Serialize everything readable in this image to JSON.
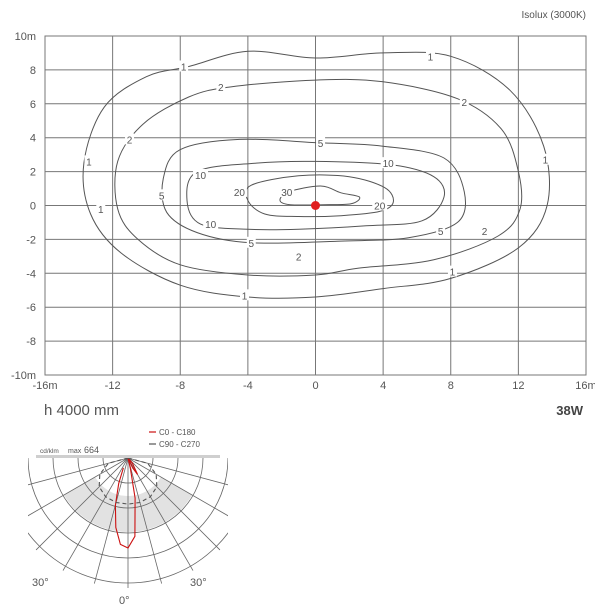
{
  "chart_data": [
    {
      "type": "contour",
      "title": "Isolux (3000K)",
      "x_range": [
        -16,
        16
      ],
      "y_range": [
        -10,
        10
      ],
      "x_ticks": [
        "-16m",
        "-12",
        "-8",
        "-4",
        "0",
        "4",
        "8",
        "12",
        "16m"
      ],
      "y_ticks": [
        "10m",
        "8",
        "6",
        "4",
        "2",
        "0",
        "-2",
        "-4",
        "-6",
        "-8",
        "-10m"
      ],
      "grid": true,
      "source_point": [
        0,
        0
      ],
      "contours": [
        {
          "level": "1",
          "points": [
            [
              -7.5,
              8.2
            ],
            [
              -4,
              9.1
            ],
            [
              0,
              8.7
            ],
            [
              4,
              9.0
            ],
            [
              8,
              8.8
            ],
            [
              11.5,
              6.8
            ],
            [
              13.5,
              3.5
            ],
            [
              13.7,
              0
            ],
            [
              12,
              -2.5
            ],
            [
              8,
              -4.3
            ],
            [
              4,
              -4.9
            ],
            [
              0,
              -5.4
            ],
            [
              -4,
              -5.4
            ],
            [
              -8,
              -4.7
            ],
            [
              -11.5,
              -2.8
            ],
            [
              -13.3,
              -0.5
            ],
            [
              -13.7,
              2.5
            ],
            [
              -12.5,
              5.8
            ],
            [
              -10,
              7.6
            ]
          ],
          "labels": [
            [
              -7.8,
              8.2
            ],
            [
              6.8,
              8.8
            ],
            [
              13.6,
              2.7
            ],
            [
              8.1,
              -3.9
            ],
            [
              -4.2,
              -5.3
            ],
            [
              -12.7,
              -0.2
            ],
            [
              -13.4,
              2.6
            ]
          ]
        },
        {
          "level": "2",
          "points": [
            [
              -5,
              7.0
            ],
            [
              0,
              7.4
            ],
            [
              4,
              7.3
            ],
            [
              8.4,
              6.3
            ],
            [
              11,
              4.5
            ],
            [
              12,
              2.0
            ],
            [
              12.1,
              -0.2
            ],
            [
              10.8,
              -1.8
            ],
            [
              7,
              -3.2
            ],
            [
              2.5,
              -3.7
            ],
            [
              0,
              -4.1
            ],
            [
              -4,
              -4.1
            ],
            [
              -8,
              -3.5
            ],
            [
              -10.5,
              -2.0
            ],
            [
              -11.7,
              -0.2
            ],
            [
              -11.7,
              2.6
            ],
            [
              -10.2,
              4.8
            ],
            [
              -7.5,
              6.4
            ]
          ],
          "labels": [
            [
              -5.6,
              7.0
            ],
            [
              8.8,
              6.1
            ],
            [
              10.0,
              -1.5
            ],
            [
              -1.0,
              -3.0
            ],
            [
              -11.0,
              3.9
            ]
          ]
        },
        {
          "level": "5",
          "points": [
            [
              -8,
              3.3
            ],
            [
              -4.5,
              3.9
            ],
            [
              0.2,
              3.7
            ],
            [
              4,
              3.5
            ],
            [
              7.6,
              2.8
            ],
            [
              8.8,
              0.8
            ],
            [
              8.4,
              -1.0
            ],
            [
              5.5,
              -1.9
            ],
            [
              1.5,
              -2.1
            ],
            [
              -3.8,
              -2.2
            ],
            [
              -7,
              -1.6
            ],
            [
              -8.8,
              -0.4
            ],
            [
              -9.0,
              1.6
            ]
          ],
          "labels": [
            [
              0.3,
              3.7
            ],
            [
              7.4,
              -1.5
            ],
            [
              -3.8,
              -2.2
            ],
            [
              -9.1,
              0.6
            ]
          ]
        },
        {
          "level": "10",
          "points": [
            [
              -7,
              2.0
            ],
            [
              -3.5,
              2.5
            ],
            [
              0,
              2.6
            ],
            [
              4.5,
              2.4
            ],
            [
              7,
              1.7
            ],
            [
              7.6,
              0.5
            ],
            [
              6.3,
              -0.9
            ],
            [
              3,
              -1.2
            ],
            [
              -1,
              -1.4
            ],
            [
              -4,
              -1.4
            ],
            [
              -6.8,
              -1.1
            ],
            [
              -7.6,
              0.3
            ]
          ],
          "labels": [
            [
              4.3,
              2.5
            ],
            [
              -6.8,
              1.8
            ],
            [
              -6.2,
              -1.1
            ]
          ]
        },
        {
          "level": "20",
          "points": [
            [
              -3.8,
              1.2
            ],
            [
              -1,
              1.75
            ],
            [
              2,
              1.7
            ],
            [
              4.1,
              1.05
            ],
            [
              4.6,
              0.2
            ],
            [
              3.8,
              -0.35
            ],
            [
              1.5,
              -0.6
            ],
            [
              -1,
              -0.65
            ],
            [
              -3.0,
              -0.5
            ],
            [
              -4.0,
              0.3
            ]
          ],
          "labels": [
            [
              -4.5,
              0.8
            ],
            [
              3.8,
              0
            ]
          ]
        },
        {
          "level": "30",
          "points": [
            [
              -1.6,
              0.8
            ],
            [
              0.3,
              1.15
            ],
            [
              1.5,
              0.75
            ],
            [
              2.6,
              0.5
            ],
            [
              2.1,
              0.1
            ],
            [
              0.5,
              0.05
            ],
            [
              -1.5,
              0.05
            ],
            [
              -2.1,
              0.3
            ]
          ],
          "labels": [
            [
              -1.7,
              0.8
            ]
          ]
        }
      ]
    },
    {
      "type": "polar",
      "unit_label": "cd/klm",
      "max_label": "max",
      "max_value": "664",
      "angle_labels": [
        "30°",
        "0°",
        "30°"
      ],
      "series": [
        {
          "name": "C0 - C180",
          "color": "#cc1111",
          "style": "solid",
          "points": [
            [
              -25,
              80
            ],
            [
              -20,
              200
            ],
            [
              -15,
              360
            ],
            [
              -10,
              520
            ],
            [
              -5,
              640
            ],
            [
              0,
              664
            ],
            [
              5,
              580
            ],
            [
              10,
              300
            ],
            [
              13,
              80
            ],
            [
              15,
              0
            ],
            [
              25,
              80
            ],
            [
              30,
              140
            ],
            [
              40,
              50
            ],
            [
              50,
              0
            ],
            [
              90,
              0
            ]
          ]
        },
        {
          "name": "C90 - C270",
          "color": "#555555",
          "style": "dashed",
          "points": [
            [
              -90,
              0
            ],
            [
              -75,
              150
            ],
            [
              -60,
              240
            ],
            [
              -45,
              300
            ],
            [
              -30,
              330
            ],
            [
              -15,
              340
            ],
            [
              0,
              340
            ],
            [
              15,
              340
            ],
            [
              30,
              330
            ],
            [
              45,
              300
            ],
            [
              60,
              240
            ],
            [
              75,
              150
            ],
            [
              90,
              0
            ]
          ]
        }
      ]
    }
  ],
  "labels": {
    "mounting_height": "h 4000 mm",
    "power": "38W"
  },
  "colors": {
    "grid": "#777777",
    "contour": "#555555",
    "source": "#e02020",
    "c0_c180": "#cc1111",
    "c90_c270": "#555555",
    "polar_fill": "#e2e2e2"
  }
}
